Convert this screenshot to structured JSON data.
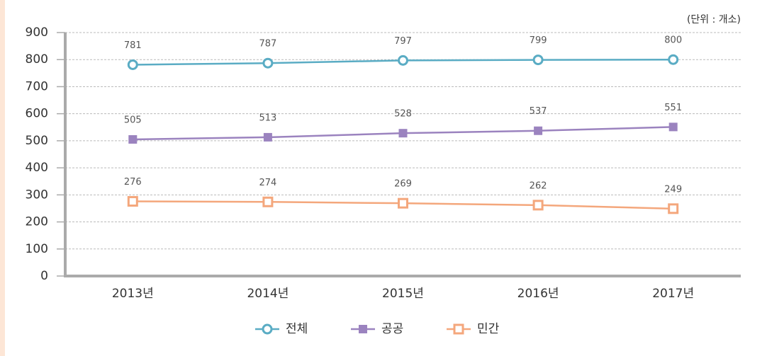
{
  "chart_data": {
    "type": "line",
    "annotation": "(단위 : 개소)",
    "categories": [
      "2013년",
      "2014년",
      "2015년",
      "2016년",
      "2017년"
    ],
    "series": [
      {
        "name": "전체",
        "color": "#5aacc4",
        "marker": "circle",
        "values": [
          781,
          787,
          797,
          799,
          800
        ]
      },
      {
        "name": "공공",
        "color": "#9b83bf",
        "marker": "square-filled",
        "values": [
          505,
          513,
          528,
          537,
          551
        ]
      },
      {
        "name": "민간",
        "color": "#f4a77c",
        "marker": "square-open",
        "values": [
          276,
          274,
          269,
          262,
          249
        ]
      }
    ],
    "ylim": [
      0,
      900
    ],
    "yticks": [
      0,
      100,
      200,
      300,
      400,
      500,
      600,
      700,
      800,
      900
    ],
    "grid": true
  }
}
